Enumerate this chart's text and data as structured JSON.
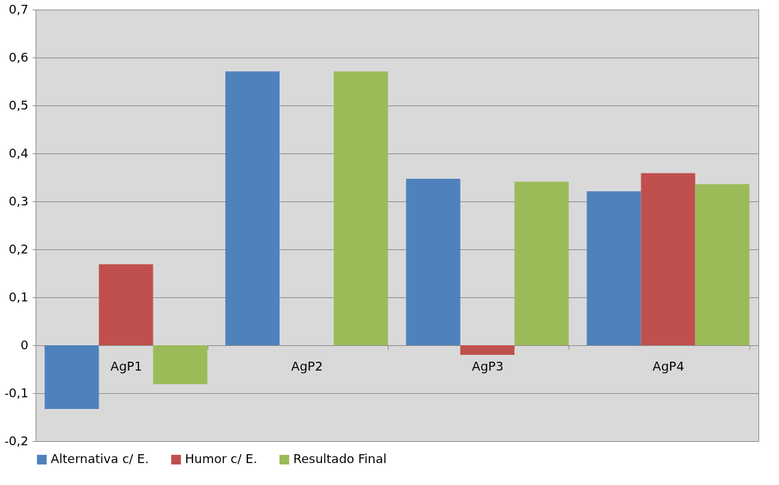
{
  "chart_data": {
    "type": "bar",
    "categories": [
      "AgP1",
      "AgP2",
      "AgP3",
      "AgP4"
    ],
    "series": [
      {
        "name": "Alternativa c/ E.",
        "color": "#4f81bd",
        "values": [
          -0.133,
          0.571,
          0.347,
          0.321
        ]
      },
      {
        "name": "Humor c/ E.",
        "color": "#c0504d",
        "values": [
          0.169,
          0,
          -0.02,
          0.359
        ]
      },
      {
        "name": "Resultado Final",
        "color": "#9bbb59",
        "values": [
          -0.081,
          0.571,
          0.341,
          0.336
        ]
      }
    ],
    "ylim": [
      -0.2,
      0.7
    ],
    "yticks": [
      {
        "value": -0.2,
        "label": "-0,2"
      },
      {
        "value": -0.1,
        "label": "-0,1"
      },
      0,
      {
        "value": 0.1,
        "label": "0,1"
      },
      {
        "value": 0.2,
        "label": "0,2"
      },
      {
        "value": 0.3,
        "label": "0,3"
      },
      {
        "value": 0.4,
        "label": "0,4"
      },
      {
        "value": 0.5,
        "label": "0,5"
      },
      {
        "value": 0.6,
        "label": "0,6"
      },
      {
        "value": 0.7,
        "label": "0,7"
      }
    ],
    "grid": "y",
    "legend": "bottom"
  }
}
